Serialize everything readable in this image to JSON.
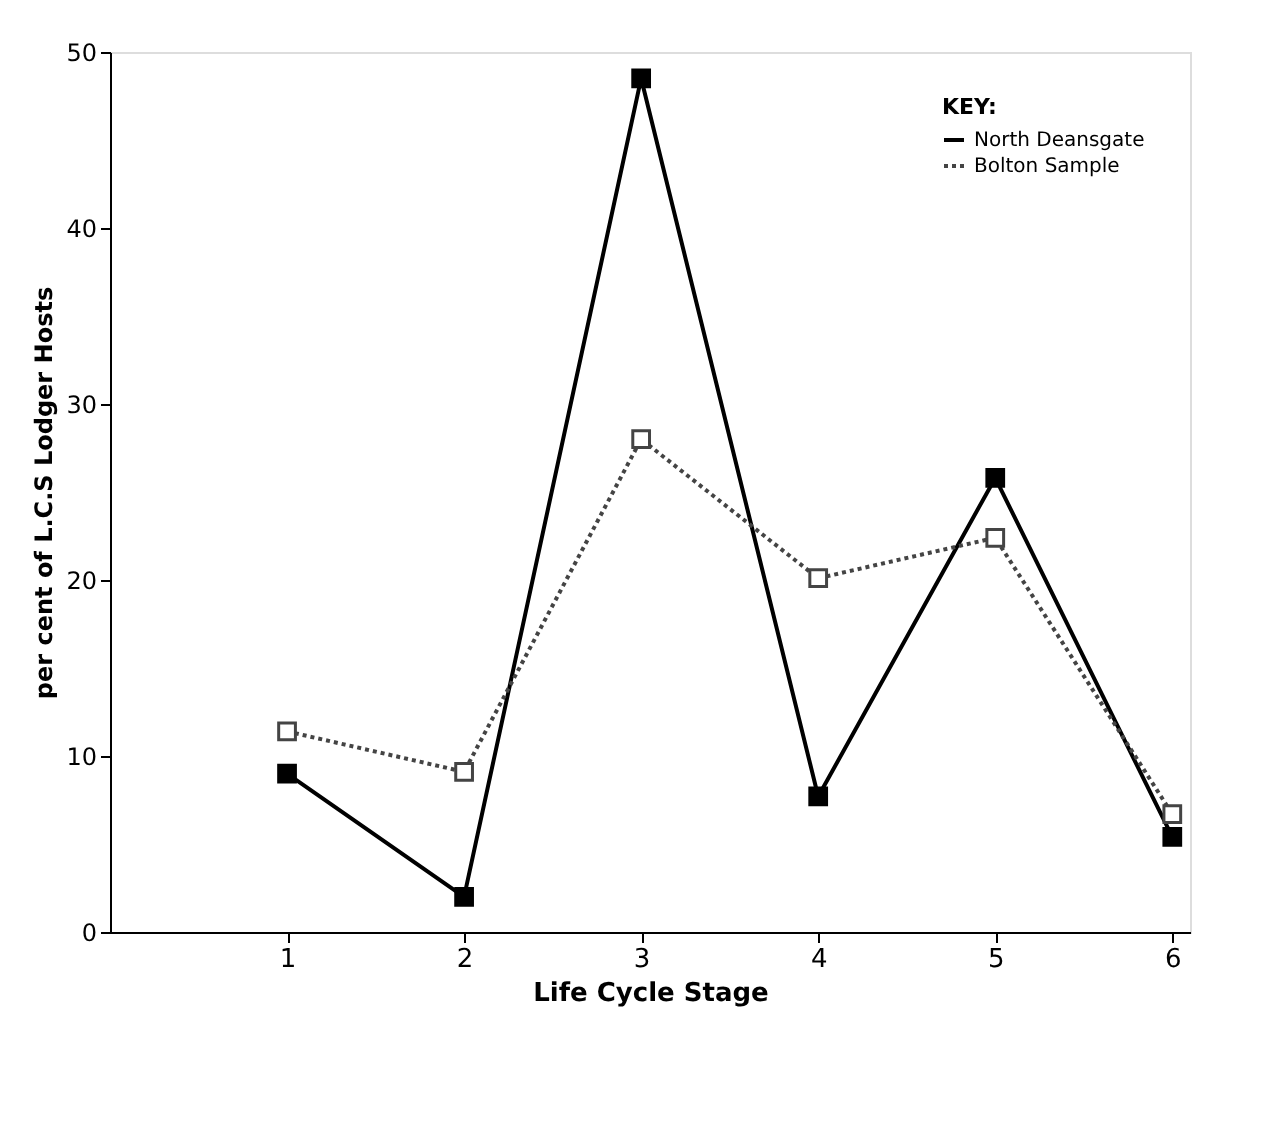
{
  "chart_data": {
    "type": "line",
    "xlabel": "Life Cycle Stage",
    "ylabel": "per cent of L.C.S Lodger Hosts",
    "legend_title": "KEY:",
    "x": [
      1,
      2,
      3,
      4,
      5,
      6
    ],
    "xlim": [
      0,
      6.1
    ],
    "xticks": [
      1,
      2,
      3,
      4,
      5,
      6
    ],
    "ylim": [
      0,
      50
    ],
    "yticks": [
      0,
      10,
      20,
      30,
      40,
      50
    ],
    "grid": false,
    "legend": "top right",
    "marker": "square",
    "series": [
      {
        "name": "North Deansgate",
        "color": "#000000",
        "line_style": "solid",
        "values": [
          9.0,
          2.0,
          48.5,
          7.7,
          25.8,
          5.4
        ]
      },
      {
        "name": "Bolton Sample",
        "color": "#444444",
        "line_style": "dotted",
        "values": [
          11.4,
          9.1,
          28.0,
          20.1,
          22.4,
          6.7
        ]
      }
    ]
  }
}
